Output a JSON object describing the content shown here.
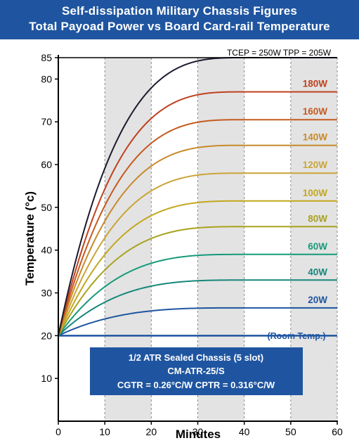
{
  "header": {
    "title_line1": "Self-dissipation Military Chassis Figures",
    "title_line2": "Total Payoad Power vs Board Card-rail Temperature"
  },
  "colors": {
    "header_bg": "#1f55a0",
    "shaded_band": "#e3e3e3",
    "room_temp_line": "#1f55a0",
    "info_box_bg": "#1f55a0"
  },
  "chart_data": {
    "type": "line",
    "xlabel": "Minutes",
    "ylabel": "Temperature (°c)",
    "xlim": [
      0,
      60
    ],
    "ylim": [
      0,
      85
    ],
    "x_ticks": [
      0,
      10,
      20,
      30,
      40,
      50,
      60
    ],
    "y_ticks": [
      10,
      20,
      30,
      40,
      50,
      60,
      70,
      80,
      85
    ],
    "shaded_x_ranges": [
      [
        10,
        20
      ],
      [
        30,
        40
      ],
      [
        50,
        60
      ]
    ],
    "top_annotation": "TCEP = 250W  TPP = 205W",
    "room_temperature": {
      "label": "(Room Temp.)",
      "value": 20
    },
    "start_temperature": 20,
    "plateau_minute": 40,
    "series": [
      {
        "name": "20W",
        "plateau": 26.5,
        "color": "#1f55a0"
      },
      {
        "name": "40W",
        "plateau": 33,
        "color": "#16877a"
      },
      {
        "name": "60W",
        "plateau": 39,
        "color": "#169a7a"
      },
      {
        "name": "80W",
        "plateau": 45.5,
        "color": "#a9a21e"
      },
      {
        "name": "100W",
        "plateau": 51.5,
        "color": "#c3a71e"
      },
      {
        "name": "120W",
        "plateau": 58,
        "color": "#cba437"
      },
      {
        "name": "140W",
        "plateau": 64.5,
        "color": "#c88a2a"
      },
      {
        "name": "160W",
        "plateau": 70.5,
        "color": "#c55a1f"
      },
      {
        "name": "180W",
        "plateau": 77,
        "color": "#c0401e"
      },
      {
        "name": "",
        "plateau": 85,
        "color": "#1b1b2e"
      }
    ],
    "info_box": {
      "line1": "1/2 ATR Sealed Chassis (5 slot)",
      "line2": "CM-ATR-25/S",
      "line3": "CGTR = 0.26°C/W   CPTR = 0.316°C/W"
    }
  }
}
